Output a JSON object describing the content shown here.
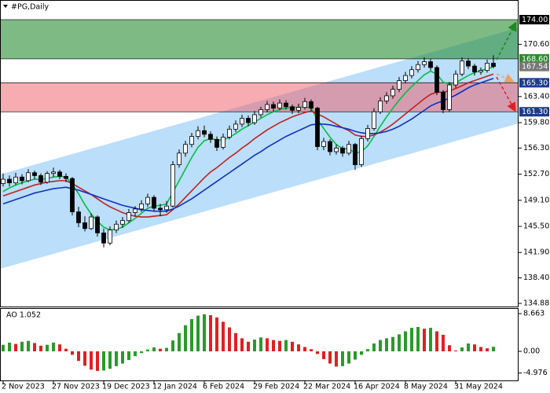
{
  "chart_data": [
    {
      "type": "candlestick",
      "title": "#PG,Daily",
      "categories": [
        "2 Nov 2023",
        null,
        null,
        null,
        null,
        null,
        null,
        null,
        "27 Nov 2023",
        null,
        null,
        null,
        null,
        null,
        null,
        null,
        "19 Dec 2023",
        null,
        null,
        null,
        null,
        null,
        null,
        null,
        "12 Jan 2024",
        null,
        null,
        null,
        null,
        null,
        null,
        null,
        "6 Feb 2024",
        null,
        null,
        null,
        null,
        null,
        null,
        null,
        "29 Feb 2024",
        null,
        null,
        null,
        null,
        null,
        null,
        null,
        "22 Mar 2024",
        null,
        null,
        null,
        null,
        null,
        null,
        null,
        "16 Apr 2024",
        null,
        null,
        null,
        null,
        null,
        null,
        null,
        "8 May 2024",
        null,
        null,
        null,
        null,
        null,
        null,
        null,
        "31 May 2024",
        null,
        null,
        null,
        null,
        null,
        null
      ],
      "candles": [
        [
          151.4,
          152.8,
          151.0,
          152.0
        ],
        [
          152.0,
          152.5,
          151.0,
          151.5
        ],
        [
          151.5,
          152.9,
          151.2,
          152.3
        ],
        [
          152.3,
          152.7,
          151.3,
          151.8
        ],
        [
          151.8,
          153.4,
          151.6,
          152.9
        ],
        [
          152.9,
          153.2,
          152.0,
          152.5
        ],
        [
          152.5,
          152.8,
          151.2,
          151.6
        ],
        [
          151.6,
          153.1,
          151.4,
          152.8
        ],
        [
          152.8,
          153.6,
          152.3,
          153.0
        ],
        [
          153.0,
          153.3,
          152.0,
          152.4
        ],
        [
          152.4,
          152.8,
          151.6,
          152.1
        ],
        [
          152.1,
          152.3,
          147.0,
          147.5
        ],
        [
          147.5,
          148.2,
          145.4,
          146.0
        ],
        [
          146.0,
          146.9,
          144.8,
          145.2
        ],
        [
          145.2,
          147.3,
          145.0,
          146.8
        ],
        [
          146.8,
          147.0,
          144.1,
          144.6
        ],
        [
          144.6,
          145.2,
          142.6,
          143.2
        ],
        [
          143.2,
          145.5,
          142.9,
          145.0
        ],
        [
          145.0,
          146.3,
          144.6,
          145.8
        ],
        [
          145.8,
          146.8,
          145.3,
          146.3
        ],
        [
          146.3,
          147.9,
          146.0,
          147.4
        ],
        [
          147.4,
          148.3,
          146.9,
          147.9
        ],
        [
          147.9,
          149.1,
          147.5,
          148.6
        ],
        [
          148.6,
          150.0,
          148.2,
          149.5
        ],
        [
          149.5,
          149.8,
          147.6,
          148.0
        ],
        [
          148.0,
          148.6,
          146.9,
          147.8
        ],
        [
          147.8,
          149.0,
          147.4,
          148.3
        ],
        [
          148.3,
          154.5,
          148.1,
          154.0
        ],
        [
          154.0,
          156.1,
          153.6,
          155.6
        ],
        [
          155.6,
          157.3,
          155.1,
          156.8
        ],
        [
          156.8,
          158.4,
          156.4,
          157.9
        ],
        [
          157.9,
          159.3,
          157.5,
          158.7
        ],
        [
          158.7,
          159.4,
          157.8,
          158.2
        ],
        [
          158.2,
          158.6,
          157.0,
          157.5
        ],
        [
          157.5,
          157.9,
          155.9,
          156.4
        ],
        [
          156.4,
          158.3,
          156.1,
          157.8
        ],
        [
          157.8,
          159.4,
          157.5,
          158.9
        ],
        [
          158.9,
          160.1,
          158.5,
          159.6
        ],
        [
          159.6,
          160.9,
          159.2,
          160.4
        ],
        [
          160.4,
          160.8,
          159.3,
          159.8
        ],
        [
          159.8,
          161.4,
          159.5,
          160.9
        ],
        [
          160.9,
          162.0,
          160.5,
          161.6
        ],
        [
          161.6,
          162.8,
          161.2,
          162.3
        ],
        [
          162.3,
          162.7,
          161.3,
          161.8
        ],
        [
          161.8,
          163.0,
          161.5,
          162.5
        ],
        [
          162.5,
          162.9,
          161.6,
          162.0
        ],
        [
          162.0,
          162.3,
          161.0,
          161.5
        ],
        [
          161.5,
          162.4,
          161.1,
          161.9
        ],
        [
          161.9,
          163.2,
          161.6,
          162.7
        ],
        [
          162.7,
          163.0,
          161.4,
          161.8
        ],
        [
          161.8,
          162.0,
          156.0,
          156.5
        ],
        [
          156.5,
          157.7,
          156.0,
          157.2
        ],
        [
          157.2,
          157.5,
          155.3,
          155.8
        ],
        [
          155.8,
          156.8,
          155.4,
          156.3
        ],
        [
          156.3,
          156.6,
          155.1,
          155.6
        ],
        [
          155.6,
          157.3,
          155.3,
          156.8
        ],
        [
          156.8,
          157.0,
          153.3,
          154.0
        ],
        [
          154.0,
          158.0,
          153.7,
          157.6
        ],
        [
          157.6,
          159.5,
          157.2,
          159.0
        ],
        [
          159.0,
          161.8,
          158.7,
          161.3
        ],
        [
          161.3,
          163.3,
          161.0,
          162.8
        ],
        [
          162.8,
          164.0,
          162.4,
          163.5
        ],
        [
          163.5,
          164.9,
          163.1,
          164.4
        ],
        [
          164.4,
          166.1,
          164.0,
          165.6
        ],
        [
          165.6,
          166.8,
          165.2,
          166.3
        ],
        [
          166.3,
          167.6,
          165.9,
          167.1
        ],
        [
          167.1,
          168.3,
          166.7,
          167.8
        ],
        [
          167.8,
          168.8,
          167.4,
          168.2
        ],
        [
          168.2,
          168.6,
          167.0,
          167.4
        ],
        [
          167.4,
          167.7,
          163.6,
          164.0
        ],
        [
          164.0,
          164.3,
          161.1,
          161.6
        ],
        [
          161.6,
          165.4,
          161.3,
          165.0
        ],
        [
          165.0,
          167.0,
          164.6,
          166.5
        ],
        [
          166.5,
          168.8,
          166.2,
          168.3
        ],
        [
          168.3,
          168.7,
          167.2,
          167.6
        ],
        [
          167.6,
          167.9,
          166.3,
          166.8
        ],
        [
          166.8,
          167.4,
          166.4,
          167.0
        ],
        [
          167.0,
          168.5,
          166.7,
          168.0
        ],
        [
          168.0,
          169.1,
          167.3,
          167.54
        ]
      ],
      "bull_color": "#ffffff",
      "bear_color": "#000000",
      "series": [
        {
          "color": "#00c040",
          "values": [
            150.3,
            150.8,
            151.2,
            151.5,
            151.8,
            152.0,
            152.0,
            152.1,
            152.3,
            152.4,
            152.3,
            151.3,
            150.0,
            148.5,
            147.2,
            146.2,
            145.4,
            145.0,
            145.1,
            145.4,
            146.0,
            146.6,
            147.3,
            148.0,
            148.3,
            148.4,
            148.6,
            150.2,
            151.8,
            153.4,
            155.0,
            156.4,
            157.3,
            157.6,
            157.4,
            157.4,
            157.8,
            158.3,
            158.9,
            159.4,
            159.9,
            160.4,
            160.9,
            161.3,
            161.6,
            161.8,
            161.9,
            161.9,
            162.0,
            161.8,
            160.2,
            159.0,
            157.8,
            156.8,
            156.2,
            156.2,
            155.6,
            155.8,
            156.6,
            157.9,
            159.3,
            160.6,
            161.8,
            162.9,
            163.9,
            164.8,
            165.6,
            166.4,
            166.9,
            166.5,
            165.4,
            165.1,
            165.3,
            165.8,
            166.3,
            166.7,
            167.0,
            167.2,
            167.5
          ]
        },
        {
          "color": "#c02020",
          "values": [
            149.7,
            150.0,
            150.3,
            150.6,
            150.9,
            151.2,
            151.4,
            151.6,
            151.7,
            151.8,
            151.8,
            151.4,
            150.9,
            150.4,
            149.9,
            149.3,
            148.7,
            148.2,
            147.8,
            147.4,
            147.1,
            146.9,
            146.8,
            146.8,
            146.9,
            147.0,
            147.1,
            147.8,
            148.6,
            149.5,
            150.4,
            151.3,
            152.2,
            153.0,
            153.6,
            154.3,
            155.0,
            155.6,
            156.3,
            156.9,
            157.6,
            158.2,
            158.8,
            159.3,
            159.8,
            160.2,
            160.6,
            160.9,
            161.2,
            161.4,
            161.0,
            160.6,
            160.1,
            159.6,
            159.1,
            158.7,
            158.1,
            157.9,
            157.9,
            158.1,
            158.5,
            159.0,
            159.6,
            160.3,
            161.0,
            161.7,
            162.4,
            163.1,
            163.7,
            164.0,
            164.0,
            164.2,
            164.5,
            164.9,
            165.3,
            165.6,
            165.9,
            166.2,
            166.5
          ]
        },
        {
          "color": "#1030c0",
          "values": [
            148.6,
            148.9,
            149.2,
            149.5,
            149.8,
            150.1,
            150.3,
            150.5,
            150.7,
            150.8,
            150.9,
            150.7,
            150.5,
            150.2,
            149.9,
            149.6,
            149.3,
            149.0,
            148.7,
            148.4,
            148.2,
            148.0,
            147.8,
            147.7,
            147.6,
            147.6,
            147.6,
            147.9,
            148.3,
            148.8,
            149.3,
            149.9,
            150.5,
            151.1,
            151.7,
            152.3,
            152.9,
            153.5,
            154.1,
            154.7,
            155.3,
            155.8,
            156.4,
            156.9,
            157.4,
            157.9,
            158.3,
            158.7,
            159.1,
            159.5,
            159.6,
            159.6,
            159.5,
            159.3,
            159.1,
            158.9,
            158.6,
            158.4,
            158.3,
            158.3,
            158.4,
            158.6,
            158.9,
            159.3,
            159.8,
            160.3,
            160.9,
            161.5,
            162.1,
            162.5,
            162.8,
            163.2,
            163.6,
            164.1,
            164.6,
            165.0,
            165.3,
            165.6,
            165.9
          ]
        }
      ],
      "channel": {
        "upper": [
          152.65,
          172.9
        ],
        "lower": [
          139.65,
          159.7
        ],
        "color": "rgba(120,190,245,0.5)"
      },
      "zones": [
        {
          "from": 168.6,
          "to": 174,
          "color": "rgba(40,140,50,0.6)"
        },
        {
          "from": 161.3,
          "to": 165.3,
          "color": "rgba(240,90,100,0.5)"
        }
      ],
      "levels": [
        {
          "value": 174,
          "label": "174.00",
          "color": "#000000"
        },
        {
          "value": 168.6,
          "label": "168.60",
          "color": "#2e8b2e"
        },
        {
          "value": 165.3,
          "label": "165.30",
          "color": "#1a3c8c"
        },
        {
          "value": 161.3,
          "label": "161.30",
          "color": "#1a3c8c"
        }
      ],
      "current_price": {
        "value": 167.54,
        "label": "167.54",
        "color": "#777777"
      },
      "ylim": [
        134.45,
        176.71
      ],
      "yticks": [
        {
          "value": 170.6,
          "label": "170.60"
        },
        {
          "value": 163.4,
          "label": "163.40"
        },
        {
          "value": 159.8,
          "label": "159.80"
        },
        {
          "value": 156.3,
          "label": "156.30"
        },
        {
          "value": 152.7,
          "label": "152.70"
        },
        {
          "value": 149.1,
          "label": "149.10"
        },
        {
          "value": 145.5,
          "label": "145.50"
        },
        {
          "value": 141.9,
          "label": "141.90"
        },
        {
          "value": 138.4,
          "label": "138.40"
        },
        {
          "value": 134.88,
          "label": "134.88"
        }
      ]
    },
    {
      "type": "bar",
      "title": "AO 1.052",
      "values": [
        1.5,
        2.0,
        1.7,
        2.2,
        2.4,
        1.9,
        1.3,
        1.5,
        2.0,
        1.6,
        0.6,
        -0.8,
        -2.2,
        -3.3,
        -4.2,
        -4.5,
        -4.4,
        -4.0,
        -3.4,
        -2.8,
        -2.0,
        -1.1,
        -0.4,
        0.4,
        0.9,
        0.6,
        0.8,
        2.5,
        4.2,
        6.0,
        7.4,
        8.2,
        8.5,
        8.3,
        7.8,
        6.8,
        5.5,
        4.2,
        3.0,
        2.2,
        2.7,
        3.2,
        3.0,
        2.6,
        2.4,
        2.6,
        2.2,
        1.6,
        1.0,
        0.5,
        -0.6,
        -1.8,
        -2.8,
        -3.5,
        -3.4,
        -2.8,
        -1.9,
        -0.8,
        0.5,
        1.8,
        2.6,
        3.0,
        3.3,
        3.9,
        4.6,
        5.4,
        5.6,
        5.2,
        5.4,
        4.6,
        3.8,
        1.4,
        0.2,
        0.9,
        1.8,
        1.6,
        1.0,
        0.7,
        1.052
      ],
      "up_color": "#2a9a2a",
      "down_color": "#e02020",
      "ylim": [
        -6.86,
        9.93
      ],
      "yticks": [
        8.663,
        {
          "value": 0,
          "label": "0.00"
        },
        -4.976
      ]
    }
  ]
}
